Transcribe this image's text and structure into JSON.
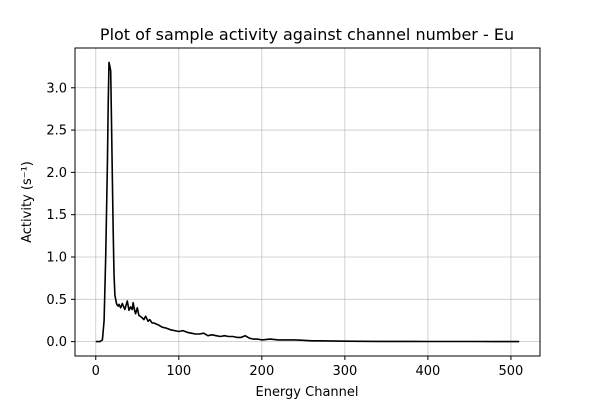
{
  "chart_data": {
    "type": "line",
    "title": "Plot of sample activity against channel number - Eu",
    "xlabel": "Energy Channel",
    "ylabel": "Activity (s⁻¹)",
    "xlim": [
      -25,
      535
    ],
    "ylim": [
      -0.17,
      3.47
    ],
    "xticks": [
      0,
      100,
      200,
      300,
      400,
      500
    ],
    "yticks": [
      0.0,
      0.5,
      1.0,
      1.5,
      2.0,
      2.5,
      3.0
    ],
    "xtick_labels": [
      "0",
      "100",
      "200",
      "300",
      "400",
      "500"
    ],
    "ytick_labels": [
      "0.0",
      "0.5",
      "1.0",
      "1.5",
      "2.0",
      "2.5",
      "3.0"
    ],
    "grid": true,
    "series": [
      {
        "color": "#000000",
        "x": [
          0,
          5,
          8,
          10,
          12,
          14,
          15,
          16,
          17,
          18,
          19,
          20,
          21,
          22,
          23,
          24,
          25,
          26,
          27,
          28,
          30,
          32,
          35,
          38,
          40,
          42,
          44,
          45,
          47,
          48,
          50,
          52,
          55,
          58,
          60,
          63,
          65,
          68,
          70,
          75,
          80,
          85,
          90,
          95,
          100,
          105,
          110,
          115,
          120,
          125,
          130,
          135,
          140,
          145,
          150,
          155,
          160,
          165,
          170,
          175,
          180,
          185,
          190,
          195,
          200,
          210,
          220,
          230,
          240,
          250,
          260,
          270,
          280,
          290,
          300,
          320,
          340,
          360,
          380,
          400,
          420,
          440,
          460,
          480,
          500,
          510
        ],
        "y": [
          0.0,
          0.0,
          0.02,
          0.25,
          1.0,
          2.1,
          2.8,
          3.3,
          3.25,
          3.2,
          2.6,
          1.9,
          1.3,
          0.8,
          0.55,
          0.5,
          0.45,
          0.43,
          0.42,
          0.44,
          0.4,
          0.45,
          0.38,
          0.48,
          0.37,
          0.41,
          0.38,
          0.46,
          0.36,
          0.33,
          0.4,
          0.31,
          0.29,
          0.26,
          0.3,
          0.24,
          0.26,
          0.22,
          0.22,
          0.2,
          0.17,
          0.16,
          0.14,
          0.13,
          0.12,
          0.13,
          0.11,
          0.1,
          0.09,
          0.09,
          0.1,
          0.07,
          0.08,
          0.07,
          0.06,
          0.07,
          0.06,
          0.06,
          0.05,
          0.05,
          0.07,
          0.04,
          0.03,
          0.03,
          0.02,
          0.03,
          0.02,
          0.02,
          0.02,
          0.015,
          0.01,
          0.01,
          0.008,
          0.006,
          0.005,
          0.004,
          0.003,
          0.002,
          0.002,
          0.001,
          0.001,
          0.001,
          0.001,
          0.0,
          0.0,
          0.0
        ]
      }
    ]
  }
}
